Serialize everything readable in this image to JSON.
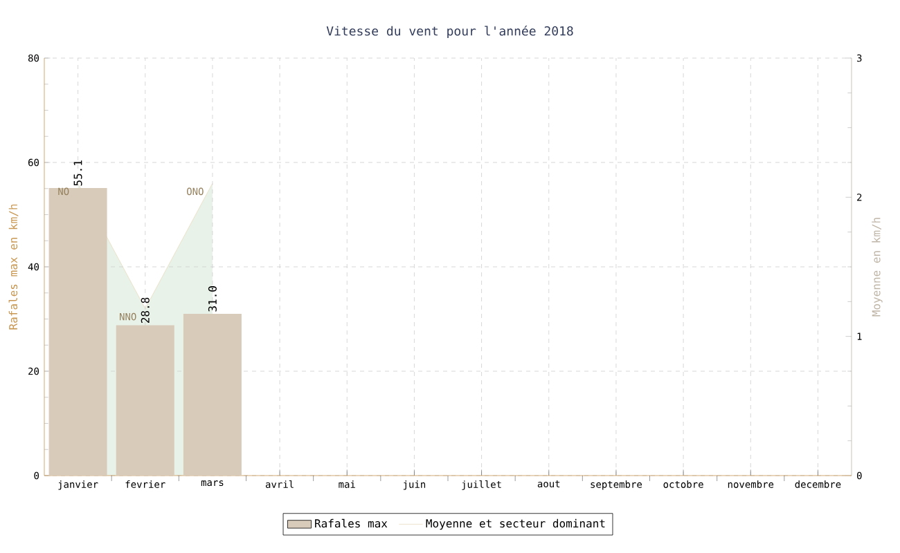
{
  "chart_data": {
    "type": "bar",
    "title": "Vitesse du vent pour l'année 2018",
    "categories": [
      "janvier",
      "fevrier",
      "mars",
      "avril",
      "mai",
      "juin",
      "juillet",
      "aout",
      "septembre",
      "octobre",
      "novembre",
      "decembre"
    ],
    "series": [
      {
        "name": "Rafales max",
        "color": "#d8cbba",
        "values": [
          55.1,
          28.8,
          31.0,
          null,
          null,
          null,
          null,
          null,
          null,
          null,
          null,
          null
        ],
        "value_labels": [
          "55.1",
          "28.8",
          "31.0",
          null,
          null,
          null,
          null,
          null,
          null,
          null,
          null,
          null
        ]
      },
      {
        "name": "Moyenne et secteur dominant",
        "type": "area",
        "axis": "y2",
        "color": "#e8dcc0",
        "values": [
          2.1,
          1.2,
          2.1,
          null,
          null,
          null,
          null,
          null,
          null,
          null,
          null,
          null
        ],
        "value_labels": [
          "NO",
          "NNO",
          "ONO",
          null,
          null,
          null,
          null,
          null,
          null,
          null,
          null,
          null
        ]
      }
    ],
    "ylabel": "Rafales max en km/h",
    "y2label": "Moyenne en km/h",
    "ylim": [
      0,
      80
    ],
    "yticks": [
      0,
      20,
      40,
      60,
      80
    ],
    "y2lim": [
      0,
      3
    ],
    "y2ticks": [
      0,
      1,
      2,
      3
    ],
    "grid": true,
    "legend": "bottom"
  }
}
